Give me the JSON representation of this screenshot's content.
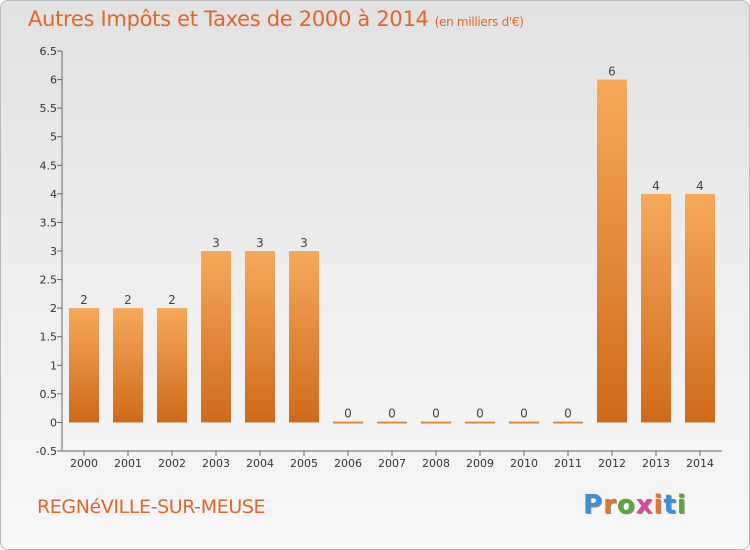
{
  "title": {
    "main": "Autres Impôts et Taxes de 2000 à 2014",
    "unit": "(en milliers d'€)"
  },
  "commune": "REGNéVILLE-SUR-MEUSE",
  "logo": {
    "letters": [
      "P",
      "r",
      "o",
      "x",
      "i",
      "t",
      "i"
    ],
    "colors": [
      "#3a8fd6",
      "#e8742a",
      "#5aa83c",
      "#d84a9a",
      "#e8742a",
      "#3a8fd6",
      "#5aa83c"
    ]
  },
  "chart_data": {
    "type": "bar",
    "title": "Autres Impôts et Taxes de 2000 à 2014",
    "subtitle": "(en milliers d'€)",
    "categories": [
      "2000",
      "2001",
      "2002",
      "2003",
      "2004",
      "2005",
      "2006",
      "2007",
      "2008",
      "2009",
      "2010",
      "2011",
      "2012",
      "2013",
      "2014"
    ],
    "values": [
      2,
      2,
      2,
      3,
      3,
      3,
      0,
      0,
      0,
      0,
      0,
      0,
      6,
      4,
      4
    ],
    "data_labels": [
      "2",
      "2",
      "2",
      "3",
      "3",
      "3",
      "0",
      "0",
      "0",
      "0",
      "0",
      "0",
      "6",
      "4",
      "4"
    ],
    "yticks": [
      "-0.5",
      "0",
      "0.5",
      "1",
      "1.5",
      "2",
      "2.5",
      "3",
      "3.5",
      "4",
      "4.5",
      "5",
      "5.5",
      "6",
      "6.5"
    ],
    "ylim": [
      -0.5,
      6.5
    ],
    "xlabel": "",
    "ylabel": "",
    "grid": false,
    "bar_colors": {
      "light": "#f6a95a",
      "dark": "#cf6a1b"
    }
  }
}
